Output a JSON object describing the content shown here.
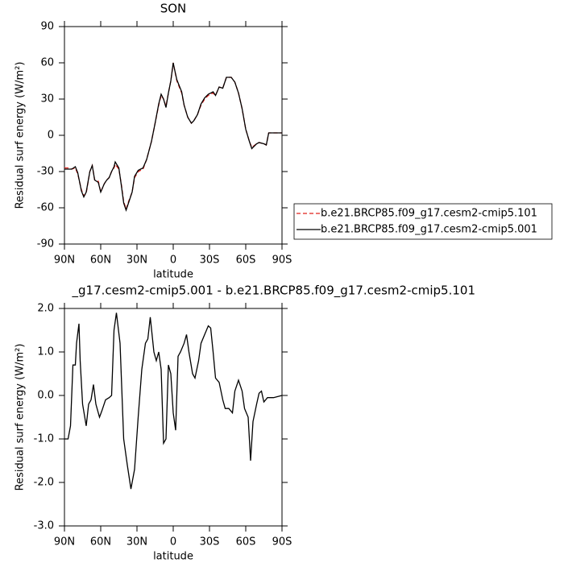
{
  "chart_data": [
    {
      "type": "line",
      "title": "SON",
      "xlabel": "latitude",
      "ylabel": "Residual surf energy (W/m²)",
      "xlim": [
        90,
        -90
      ],
      "ylim": [
        -90,
        90
      ],
      "xticks": [
        {
          "value": 90,
          "label": "90N"
        },
        {
          "value": 60,
          "label": "60N"
        },
        {
          "value": 30,
          "label": "30N"
        },
        0,
        {
          "value": -30,
          "label": "30S"
        },
        {
          "value": -60,
          "label": "60S"
        },
        {
          "value": -90,
          "label": "90S"
        }
      ],
      "yticks": [
        -90,
        -60,
        -30,
        0,
        30,
        60,
        90
      ],
      "legend": "outside-right",
      "x": [
        90,
        87,
        84,
        81,
        79,
        76,
        74,
        72,
        69,
        67,
        65,
        62,
        60,
        57,
        55,
        53,
        51,
        49,
        48,
        45,
        43,
        41,
        39,
        37,
        34,
        32,
        29,
        25,
        22,
        18,
        15,
        12,
        10,
        8,
        6,
        4,
        2,
        0,
        -1,
        -3,
        -7,
        -9,
        -12,
        -15,
        -17,
        -20,
        -23,
        -26,
        -29,
        -33,
        -35,
        -38,
        -41,
        -44,
        -48,
        -51,
        -54,
        -57,
        -60,
        -63,
        -65,
        -69,
        -71,
        -75,
        -77,
        -79,
        -83,
        -90
      ],
      "series": [
        {
          "name": "b.e21.BRCP85.f09_g17.cesm2-cmip5.101",
          "color": "#e0201b",
          "linestyle": "dashed",
          "values": [
            -27,
            -27,
            -28,
            -27,
            -32,
            -45,
            -50,
            -48,
            -30,
            -25,
            -37,
            -38,
            -47,
            -40,
            -37,
            -35,
            -30,
            -27,
            -24,
            -28,
            -40,
            -55,
            -61,
            -55,
            -47,
            -35,
            -30,
            -28,
            -20,
            -5,
            10,
            25,
            33,
            30,
            24,
            35,
            45,
            60,
            55,
            45,
            35,
            25,
            15,
            10,
            12,
            17,
            25,
            30,
            33,
            35,
            33,
            40,
            39,
            48,
            48,
            44,
            35,
            22,
            5,
            -5,
            -10,
            -7,
            -6,
            -7,
            -8,
            2,
            2,
            2
          ]
        },
        {
          "name": "b.e21.BRCP85.f09_g17.cesm2-cmip5.001",
          "color": "#000000",
          "linestyle": "solid",
          "values": [
            -28,
            -28,
            -28,
            -26,
            -31,
            -46,
            -51,
            -47,
            -30,
            -25,
            -37,
            -39,
            -47,
            -40,
            -37,
            -35,
            -30,
            -26,
            -22,
            -27,
            -41,
            -56,
            -62,
            -56,
            -47,
            -34,
            -29,
            -27,
            -20,
            -5,
            10,
            26,
            34,
            30,
            23,
            35,
            45,
            60,
            55,
            46,
            36,
            25,
            15,
            10,
            12,
            17,
            26,
            31,
            34,
            36,
            33,
            40,
            39,
            48,
            48,
            44,
            35,
            22,
            5,
            -5,
            -11,
            -7,
            -6,
            -7,
            -8,
            2,
            2,
            2
          ]
        }
      ]
    },
    {
      "type": "line",
      "title": "_g17.cesm2-cmip5.001 - b.e21.BRCP85.f09_g17.cesm2-cmip5.101",
      "xlabel": "latitude",
      "ylabel": "Residual surf energy (W/m²)",
      "xlim": [
        90,
        -90
      ],
      "ylim": [
        -3,
        2
      ],
      "xticks": [
        {
          "value": 90,
          "label": "90N"
        },
        {
          "value": 60,
          "label": "60N"
        },
        {
          "value": 30,
          "label": "30N"
        },
        0,
        {
          "value": -30,
          "label": "30S"
        },
        {
          "value": -60,
          "label": "60S"
        },
        {
          "value": -90,
          "label": "90S"
        }
      ],
      "yticks": [
        {
          "value": -3,
          "label": "-3.0"
        },
        {
          "value": -2,
          "label": "-2.0"
        },
        {
          "value": -1,
          "label": "-1.0"
        },
        {
          "value": 0,
          "label": "0.0"
        },
        {
          "value": 1,
          "label": "1.0"
        },
        {
          "value": 2,
          "label": "2.0"
        }
      ],
      "x": [
        90,
        87,
        85,
        83,
        81,
        80,
        78,
        77,
        75,
        72,
        70,
        68,
        66,
        64,
        61,
        59,
        56,
        53,
        51,
        49,
        47,
        44,
        41,
        38,
        35,
        32,
        29,
        26,
        23,
        21,
        19,
        16,
        14,
        12,
        10,
        8,
        6,
        4,
        2,
        0,
        -2,
        -4,
        -6,
        -9,
        -11,
        -13,
        -16,
        -18,
        -21,
        -23,
        -26,
        -29,
        -31,
        -33,
        -35,
        -38,
        -41,
        -43,
        -46,
        -49,
        -51,
        -54,
        -57,
        -59,
        -62,
        -64,
        -66,
        -69,
        -71,
        -73,
        -75,
        -78,
        -83,
        -90
      ],
      "color": "#000000",
      "values": [
        -1.0,
        -1.0,
        -0.7,
        0.7,
        0.7,
        1.2,
        1.65,
        0.8,
        -0.2,
        -0.7,
        -0.2,
        -0.1,
        0.25,
        -0.2,
        -0.5,
        -0.35,
        -0.1,
        -0.05,
        0,
        1.5,
        1.9,
        1.2,
        -1.0,
        -1.6,
        -2.15,
        -1.7,
        -0.5,
        0.6,
        1.2,
        1.3,
        1.8,
        1.0,
        0.8,
        1.0,
        0.6,
        -1.1,
        -1.0,
        0.7,
        0.5,
        -0.4,
        -0.8,
        0.9,
        1.0,
        1.2,
        1.4,
        1.0,
        0.5,
        0.4,
        0.8,
        1.2,
        1.4,
        1.6,
        1.55,
        1.0,
        0.4,
        0.3,
        -0.1,
        -0.3,
        -0.3,
        -0.4,
        0.1,
        0.35,
        0.1,
        -0.3,
        -0.5,
        -1.5,
        -0.6,
        -0.2,
        0.05,
        0.1,
        -0.15,
        -0.05,
        -0.05,
        0
      ]
    }
  ]
}
